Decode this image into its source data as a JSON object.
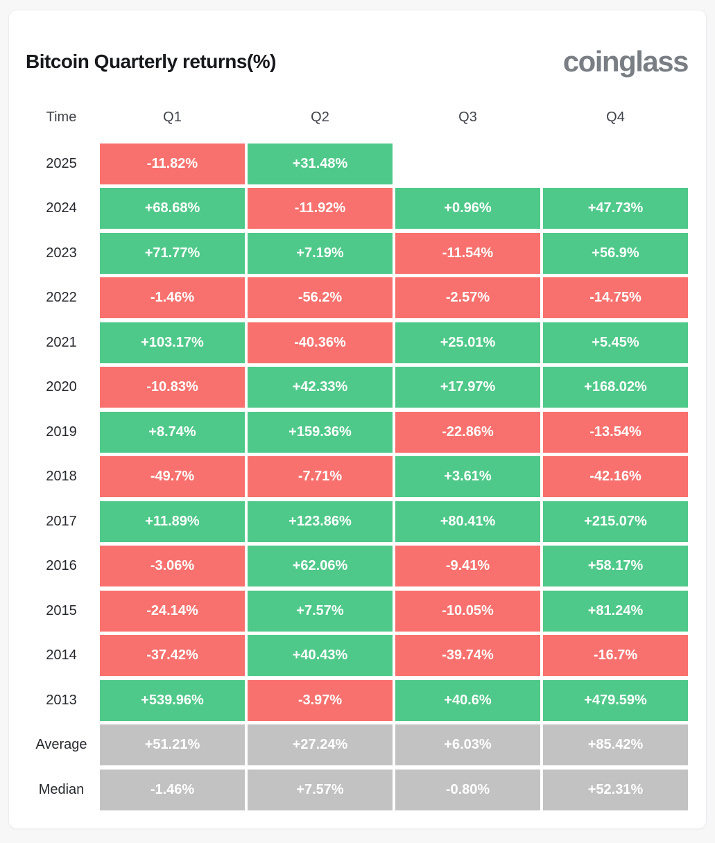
{
  "header": {
    "title": "Bitcoin Quarterly returns(%)",
    "brand": "coinglass"
  },
  "colors": {
    "positive": "#4fc98a",
    "negative": "#f8716e",
    "summary": "#c2c2c2",
    "card_background": "#ffffff",
    "page_background": "#f7f7f8",
    "title_text": "#17181c",
    "brand_text": "#797e84",
    "cell_text": "#ffffff"
  },
  "table": {
    "columns": [
      "Time",
      "Q1",
      "Q2",
      "Q3",
      "Q4"
    ],
    "rows": [
      {
        "label": "2025",
        "type": "year",
        "values": [
          "-11.82%",
          "+31.48%",
          "",
          ""
        ]
      },
      {
        "label": "2024",
        "type": "year",
        "values": [
          "+68.68%",
          "-11.92%",
          "+0.96%",
          "+47.73%"
        ]
      },
      {
        "label": "2023",
        "type": "year",
        "values": [
          "+71.77%",
          "+7.19%",
          "-11.54%",
          "+56.9%"
        ]
      },
      {
        "label": "2022",
        "type": "year",
        "values": [
          "-1.46%",
          "-56.2%",
          "-2.57%",
          "-14.75%"
        ]
      },
      {
        "label": "2021",
        "type": "year",
        "values": [
          "+103.17%",
          "-40.36%",
          "+25.01%",
          "+5.45%"
        ]
      },
      {
        "label": "2020",
        "type": "year",
        "values": [
          "-10.83%",
          "+42.33%",
          "+17.97%",
          "+168.02%"
        ]
      },
      {
        "label": "2019",
        "type": "year",
        "values": [
          "+8.74%",
          "+159.36%",
          "-22.86%",
          "-13.54%"
        ]
      },
      {
        "label": "2018",
        "type": "year",
        "values": [
          "-49.7%",
          "-7.71%",
          "+3.61%",
          "-42.16%"
        ]
      },
      {
        "label": "2017",
        "type": "year",
        "values": [
          "+11.89%",
          "+123.86%",
          "+80.41%",
          "+215.07%"
        ]
      },
      {
        "label": "2016",
        "type": "year",
        "values": [
          "-3.06%",
          "+62.06%",
          "-9.41%",
          "+58.17%"
        ]
      },
      {
        "label": "2015",
        "type": "year",
        "values": [
          "-24.14%",
          "+7.57%",
          "-10.05%",
          "+81.24%"
        ]
      },
      {
        "label": "2014",
        "type": "year",
        "values": [
          "-37.42%",
          "+40.43%",
          "-39.74%",
          "-16.7%"
        ]
      },
      {
        "label": "2013",
        "type": "year",
        "values": [
          "+539.96%",
          "-3.97%",
          "+40.6%",
          "+479.59%"
        ]
      },
      {
        "label": "Average",
        "type": "summary",
        "values": [
          "+51.21%",
          "+27.24%",
          "+6.03%",
          "+85.42%"
        ]
      },
      {
        "label": "Median",
        "type": "summary",
        "values": [
          "-1.46%",
          "+7.57%",
          "-0.80%",
          "+52.31%"
        ]
      }
    ]
  },
  "chart_data": {
    "type": "heatmap",
    "title": "Bitcoin Quarterly returns(%)",
    "columns": [
      "Q1",
      "Q2",
      "Q3",
      "Q4"
    ],
    "row_labels": [
      "2025",
      "2024",
      "2023",
      "2022",
      "2021",
      "2020",
      "2019",
      "2018",
      "2017",
      "2016",
      "2015",
      "2014",
      "2013",
      "Average",
      "Median"
    ],
    "values_pct": [
      [
        -11.82,
        31.48,
        null,
        null
      ],
      [
        68.68,
        -11.92,
        0.96,
        47.73
      ],
      [
        71.77,
        7.19,
        -11.54,
        56.9
      ],
      [
        -1.46,
        -56.2,
        -2.57,
        -14.75
      ],
      [
        103.17,
        -40.36,
        25.01,
        5.45
      ],
      [
        -10.83,
        42.33,
        17.97,
        168.02
      ],
      [
        8.74,
        159.36,
        -22.86,
        -13.54
      ],
      [
        -49.7,
        -7.71,
        3.61,
        -42.16
      ],
      [
        11.89,
        123.86,
        80.41,
        215.07
      ],
      [
        -3.06,
        62.06,
        -9.41,
        58.17
      ],
      [
        -24.14,
        7.57,
        -10.05,
        81.24
      ],
      [
        -37.42,
        40.43,
        -39.74,
        -16.7
      ],
      [
        539.96,
        -3.97,
        40.6,
        479.59
      ],
      [
        51.21,
        27.24,
        6.03,
        85.42
      ],
      [
        -1.46,
        7.57,
        -0.8,
        52.31
      ]
    ],
    "legend": "green = positive return, red = negative return, gray = summary rows",
    "color_rule": "cell background by sign of value; Average/Median rows always gray"
  }
}
